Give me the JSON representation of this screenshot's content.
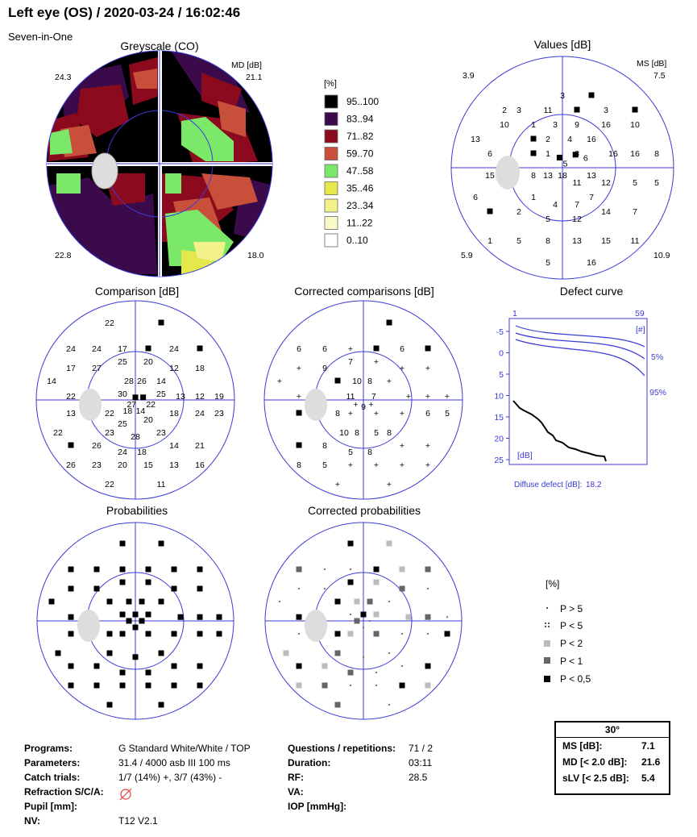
{
  "header": {
    "title": "Left eye (OS) / 2020-03-24 / 16:02:46",
    "subtitle": "Seven-in-One"
  },
  "panels": {
    "greyscale": "Greyscale (CO)",
    "values": "Values [dB]",
    "comparison": "Comparison [dB]",
    "corrected_comparisons": "Corrected comparisons [dB]",
    "defect_curve": "Defect curve",
    "probabilities": "Probabilities",
    "corrected_probabilities": "Corrected probabilities"
  },
  "greyscale_corners": {
    "md_label": "MD [dB]",
    "tl": "24.3",
    "tr": "21.1",
    "bl": "22.8",
    "br": "18.0"
  },
  "values_corners": {
    "ms_label": "MS [dB]",
    "tl": "3.9",
    "tr": "7.5",
    "bl": "5.9",
    "br": "10.9"
  },
  "legend": {
    "title": "[%]",
    "items": [
      {
        "label": "95..100",
        "color": "#000000"
      },
      {
        "label": "83..94",
        "color": "#3a0a4a"
      },
      {
        "label": "71..82",
        "color": "#8b0a1e"
      },
      {
        "label": "59..70",
        "color": "#c8503a"
      },
      {
        "label": "47..58",
        "color": "#7ce86a"
      },
      {
        "label": "35..46",
        "color": "#e4e84a"
      },
      {
        "label": "23..34",
        "color": "#f3f28a"
      },
      {
        "label": "11..22",
        "color": "#fafac8"
      },
      {
        "label": "0..10",
        "color": "#ffffff"
      }
    ]
  },
  "values_points": [
    [
      "3",
      0,
      -5
    ],
    [
      "■",
      2,
      -5
    ],
    [
      "2",
      -4,
      -4
    ],
    [
      "3",
      -3,
      -4
    ],
    [
      "11",
      -1,
      -4
    ],
    [
      "■",
      1,
      -4
    ],
    [
      "3",
      3,
      -4
    ],
    [
      "■",
      5,
      -4
    ],
    [
      "10",
      -4,
      -3
    ],
    [
      "1",
      -2,
      -3
    ],
    [
      "3",
      -0.5,
      -3
    ],
    [
      "9",
      1,
      -3
    ],
    [
      "16",
      3,
      -3
    ],
    [
      "10",
      5,
      -3
    ],
    [
      "13",
      -6,
      -2
    ],
    [
      "■",
      -2,
      -2
    ],
    [
      "2",
      -1,
      -2
    ],
    [
      "4",
      0.5,
      -2
    ],
    [
      "16",
      2,
      -2
    ],
    [
      "6",
      -5,
      -1
    ],
    [
      "■",
      -2,
      -1
    ],
    [
      "1",
      -1,
      -1
    ],
    [
      "8",
      1,
      -1
    ],
    [
      "16",
      3.5,
      -1
    ],
    [
      "16",
      5,
      -1
    ],
    [
      "8",
      6.5,
      -1
    ],
    [
      "■",
      -0.2,
      -0.7
    ],
    [
      "5",
      0.2,
      -0.3
    ],
    [
      "6",
      1.6,
      -0.7
    ],
    [
      "■",
      0.9,
      -0.9
    ],
    [
      "15",
      -5,
      0.5
    ],
    [
      "8",
      -2,
      0.5
    ],
    [
      "13",
      -1,
      0.5
    ],
    [
      "18",
      0,
      0.5
    ],
    [
      "11",
      1,
      1
    ],
    [
      "13",
      2,
      0.5
    ],
    [
      "12",
      3,
      1
    ],
    [
      "5",
      5,
      1
    ],
    [
      "5",
      6.5,
      1
    ],
    [
      "6",
      -6,
      2
    ],
    [
      "1",
      -2,
      2
    ],
    [
      "4",
      -0.5,
      2.5
    ],
    [
      "7",
      1,
      2.5
    ],
    [
      "7",
      2,
      2
    ],
    [
      "14",
      3,
      3
    ],
    [
      "7",
      5,
      3
    ],
    [
      "■",
      -5,
      3
    ],
    [
      "2",
      -3,
      3
    ],
    [
      "5",
      -1,
      3.5
    ],
    [
      "12",
      1,
      3.5
    ],
    [
      "1",
      -5,
      5
    ],
    [
      "5",
      -3,
      5
    ],
    [
      "8",
      -1,
      5
    ],
    [
      "13",
      1,
      5
    ],
    [
      "15",
      3,
      5
    ],
    [
      "11",
      5,
      5
    ],
    [
      "5",
      -1,
      6.5
    ],
    [
      "16",
      2,
      6.5
    ]
  ],
  "comparison_points": [
    [
      "22",
      -2,
      -6
    ],
    [
      "■",
      2,
      -6
    ],
    [
      "24",
      -5,
      -4
    ],
    [
      "24",
      -3,
      -4
    ],
    [
      "17",
      -1,
      -4
    ],
    [
      "■",
      1,
      -4
    ],
    [
      "24",
      3,
      -4
    ],
    [
      "■",
      5,
      -4
    ],
    [
      "17",
      -5,
      -2.5
    ],
    [
      "27",
      -3,
      -2.5
    ],
    [
      "25",
      -1,
      -3
    ],
    [
      "20",
      1,
      -3
    ],
    [
      "12",
      3,
      -2.5
    ],
    [
      "18",
      5,
      -2.5
    ],
    [
      "14",
      -6.5,
      -1.5
    ],
    [
      "28",
      -0.5,
      -1.5
    ],
    [
      "26",
      0.5,
      -1.5
    ],
    [
      "14",
      2,
      -1.5
    ],
    [
      "22",
      -5,
      -0.3
    ],
    [
      "30",
      -1,
      -0.5
    ],
    [
      "■",
      0,
      -0.2
    ],
    [
      "■",
      0.6,
      -0.2
    ],
    [
      "25",
      2,
      -0.5
    ],
    [
      "13",
      3.5,
      -0.3
    ],
    [
      "12",
      5,
      -0.3
    ],
    [
      "19",
      6.5,
      -0.3
    ],
    [
      "27",
      -0.3,
      0.3
    ],
    [
      "18",
      -0.6,
      0.8
    ],
    [
      "14",
      0.4,
      0.8
    ],
    [
      "22",
      1.2,
      0.3
    ],
    [
      "13",
      -5,
      1
    ],
    [
      "22",
      -2,
      1
    ],
    [
      "25",
      -1,
      1.8
    ],
    [
      "20",
      1,
      1.5
    ],
    [
      "18",
      3,
      1
    ],
    [
      "24",
      5,
      1
    ],
    [
      "23",
      6.5,
      1
    ],
    [
      "22",
      -6,
      2.5
    ],
    [
      "23",
      -2,
      2.5
    ],
    [
      "28",
      0,
      2.8
    ],
    [
      "23",
      2,
      2.5
    ],
    [
      "■",
      -5,
      3.5
    ],
    [
      "26",
      -3,
      3.5
    ],
    [
      "24",
      -1,
      4
    ],
    [
      "18",
      0.5,
      4
    ],
    [
      "14",
      3,
      3.5
    ],
    [
      "21",
      5,
      3.5
    ],
    [
      "26",
      -5,
      5
    ],
    [
      "23",
      -3,
      5
    ],
    [
      "20",
      -1,
      5
    ],
    [
      "15",
      1,
      5
    ],
    [
      "13",
      3,
      5
    ],
    [
      "16",
      5,
      5
    ],
    [
      "22",
      -2,
      6.5
    ],
    [
      "11",
      2,
      6.5
    ]
  ],
  "corrected_points": [
    [
      "■",
      2,
      -6
    ],
    [
      "6",
      -5,
      -4
    ],
    [
      "6",
      -3,
      -4
    ],
    [
      "+",
      -1,
      -4
    ],
    [
      "■",
      1,
      -4
    ],
    [
      "6",
      3,
      -4
    ],
    [
      "■",
      5,
      -4
    ],
    [
      "+",
      -5,
      -2.5
    ],
    [
      "9",
      -3,
      -2.5
    ],
    [
      "7",
      -1,
      -3
    ],
    [
      "+",
      1,
      -3
    ],
    [
      "+",
      3,
      -2.5
    ],
    [
      "+",
      5,
      -2.5
    ],
    [
      "+",
      -6.5,
      -1.5
    ],
    [
      "■",
      -2,
      -1.5
    ],
    [
      "10",
      -0.5,
      -1.5
    ],
    [
      "8",
      0.5,
      -1.5
    ],
    [
      "+",
      2,
      -1.5
    ],
    [
      "+",
      -5,
      -0.3
    ],
    [
      "11",
      -1,
      -0.3
    ],
    [
      "7",
      0.8,
      -0.3
    ],
    [
      "+",
      3.5,
      -0.3
    ],
    [
      "+",
      5,
      -0.3
    ],
    [
      "+",
      6.5,
      -0.3
    ],
    [
      "9",
      0,
      0.5
    ],
    [
      "+",
      -0.6,
      0.3
    ],
    [
      "+",
      0.6,
      0.3
    ],
    [
      "■",
      -5,
      1
    ],
    [
      "8",
      -2,
      1
    ],
    [
      "+",
      -1,
      1
    ],
    [
      "+",
      1,
      1
    ],
    [
      "+",
      3,
      1
    ],
    [
      "6",
      5,
      1
    ],
    [
      "5",
      6.5,
      1
    ],
    [
      "10",
      -1.5,
      2.5
    ],
    [
      "8",
      -0.5,
      2.5
    ],
    [
      "5",
      1,
      2.5
    ],
    [
      "8",
      2,
      2.5
    ],
    [
      "■",
      -5,
      3.5
    ],
    [
      "8",
      -3,
      3.5
    ],
    [
      "5",
      -1,
      4
    ],
    [
      "8",
      0.5,
      4
    ],
    [
      "+",
      3,
      3.5
    ],
    [
      "+",
      5,
      3.5
    ],
    [
      "8",
      -5,
      5
    ],
    [
      "5",
      -3,
      5
    ],
    [
      "+",
      -1,
      5
    ],
    [
      "+",
      1,
      5
    ],
    [
      "+",
      3,
      5
    ],
    [
      "+",
      5,
      5
    ],
    [
      "+",
      -2,
      6.5
    ],
    [
      "+",
      2,
      6.5
    ]
  ],
  "defect_curve": {
    "x_start": "1",
    "x_end": "59",
    "x_unit": "[#]",
    "y_unit": "[dB]",
    "y_ticks": [
      "-5",
      "0",
      "5",
      "10",
      "15",
      "20",
      "25"
    ],
    "p5": "5%",
    "p95": "95%",
    "diffuse_label": "Diffuse defect [dB]:",
    "diffuse_value": "18.2"
  },
  "prob_legend": {
    "title": "[%]",
    "items": [
      "P > 5",
      "P < 5",
      "P < 2",
      "P < 1",
      "P < 0,5"
    ]
  },
  "info": {
    "programs_l": "Programs:",
    "programs_v": "G Standard   White/White / TOP",
    "parameters_l": "Parameters:",
    "parameters_v": "31.4  / 4000 asb III 100 ms",
    "catch_l": "Catch trials:",
    "catch_v": "1/7 (14%) +, 3/7 (43%) -",
    "refraction_l": "Refraction S/C/A:",
    "pupil_l": "Pupil [mm]:",
    "nv_l": "NV:",
    "nv_v": "T12 V2.1",
    "questions_l": "Questions / repetitions:",
    "questions_v": "71 / 2",
    "duration_l": "Duration:",
    "duration_v": "03:11",
    "rf_l": "RF:",
    "rf_v": "28.5",
    "va_l": "VA:",
    "iop_l": "IOP [mmHg]:"
  },
  "summary": {
    "header": "30°",
    "ms_l": "MS [dB]:",
    "ms_v": "7.1",
    "md_l": "MD [< 2.0 dB]:",
    "md_v": "21.6",
    "slv_l": "sLV [< 2.5 dB]:",
    "slv_v": "5.4"
  },
  "colors": {
    "line": "#3b3bd6"
  }
}
